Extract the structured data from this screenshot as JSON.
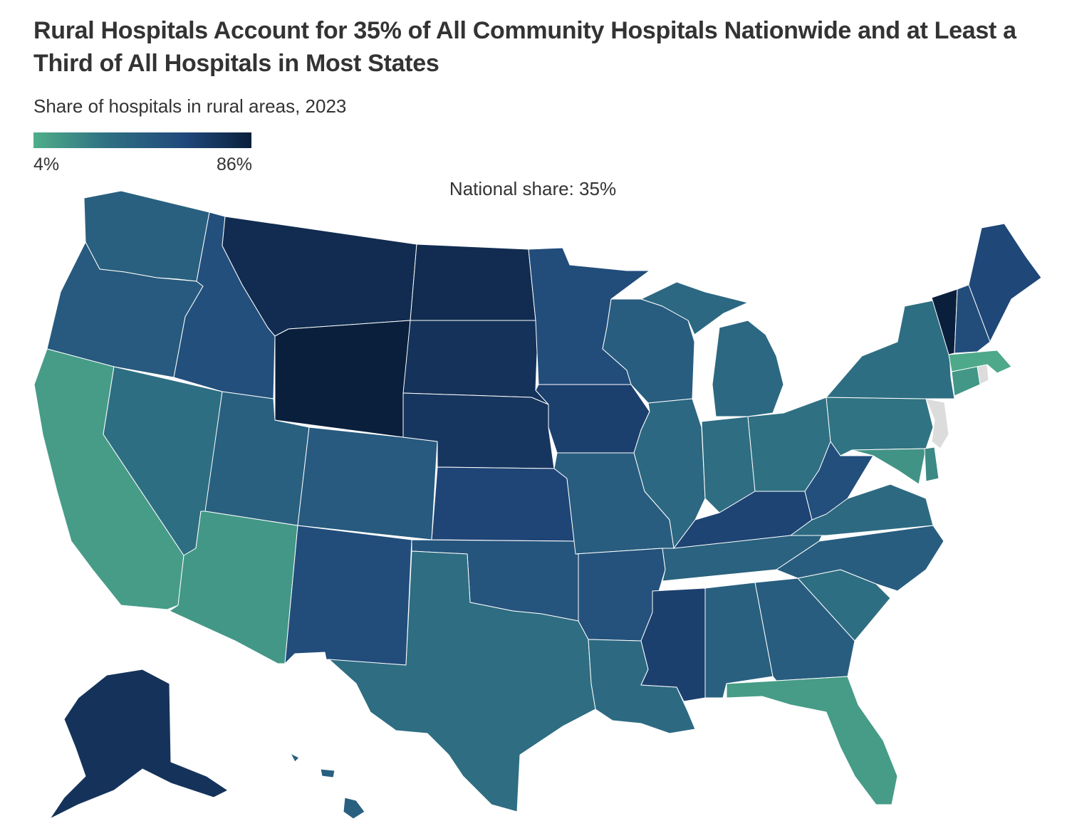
{
  "title": "Rural Hospitals Account for 35% of All Community Hospitals Nationwide and at Least a Third of All Hospitals in Most States",
  "subtitle": "Share of hospitals in rural areas, 2023",
  "legend": {
    "min_label": "4%",
    "max_label": "86%",
    "min_value": 4,
    "max_value": 86,
    "colors": [
      "#4fae89",
      "#2f7183",
      "#20487a",
      "#0a1f3c"
    ]
  },
  "national_share_label": "National share: 35%",
  "chart_data": {
    "type": "choropleth",
    "title": "Rural Hospitals Account for 35% of All Community Hospitals Nationwide and at Least a Third of All Hospitals in Most States",
    "subtitle": "Share of hospitals in rural areas, 2023",
    "metric": "Share of hospitals in rural areas (%)",
    "no_data_color": "#dcdcdc",
    "values": {
      "WA": 44,
      "OR": 48,
      "CA": 12,
      "NV": 33,
      "ID": 56,
      "MT": 78,
      "WY": 86,
      "UT": 44,
      "AZ": 14,
      "CO": 48,
      "NM": 58,
      "ND": 78,
      "SD": 74,
      "NE": 72,
      "KS": 63,
      "OK": 52,
      "TX": 34,
      "MN": 58,
      "IA": 66,
      "MO": 46,
      "AR": 54,
      "LA": 36,
      "WI": 46,
      "IL": 38,
      "MI": 38,
      "IN": 34,
      "OH": 32,
      "KY": 64,
      "TN": 42,
      "MS": 66,
      "AL": 44,
      "GA": 46,
      "FL": 12,
      "SC": 33,
      "NC": 46,
      "VA": 36,
      "WV": 56,
      "PA": 30,
      "NY": 33,
      "ME": 62,
      "VT": 86,
      "NH": 58,
      "MA": 6,
      "CT": 14,
      "RI": null,
      "NJ": null,
      "DE": 20,
      "MD": 16,
      "AK": 74,
      "HI": 44
    }
  }
}
